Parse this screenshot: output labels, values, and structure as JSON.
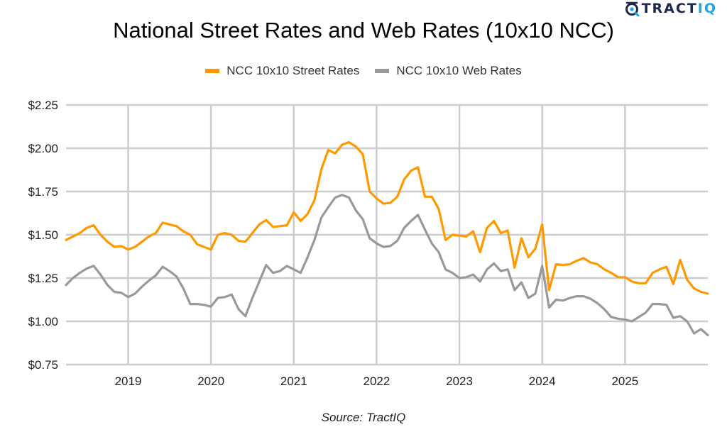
{
  "brand": {
    "logo_text_main": "TRACT",
    "logo_text_accent": "IQ",
    "logo_icon": "tractiq-target-icon",
    "colors": {
      "navy": "#1b2a4a",
      "blue": "#1fa6e0"
    }
  },
  "source_note": "Source: TractIQ",
  "chart_data": {
    "type": "line",
    "title": "National Street Rates and Web Rates (10x10 NCC)",
    "xlabel": "",
    "ylabel": "",
    "x_start": "2018-04",
    "x_end": "2026-01",
    "x_interval": "monthly",
    "x_ticks": [
      "2019",
      "2020",
      "2021",
      "2022",
      "2023",
      "2024",
      "2025"
    ],
    "y_ticks": [
      "$0.75",
      "$1.00",
      "$1.25",
      "$1.50",
      "$1.75",
      "$2.00",
      "$2.25"
    ],
    "ylim": [
      0.75,
      2.25
    ],
    "y_tick_values": [
      0.75,
      1.0,
      1.25,
      1.5,
      1.75,
      2.0,
      2.25
    ],
    "grid": true,
    "legend_position": "top-center",
    "series": [
      {
        "name": "NCC 10x10 Street Rates",
        "color": "#ff9900",
        "values": [
          1.47,
          1.49,
          1.51,
          1.54,
          1.555,
          1.5,
          1.46,
          1.43,
          1.435,
          1.415,
          1.43,
          1.46,
          1.49,
          1.51,
          1.57,
          1.56,
          1.55,
          1.52,
          1.5,
          1.445,
          1.43,
          1.415,
          1.5,
          1.51,
          1.5,
          1.465,
          1.46,
          1.51,
          1.56,
          1.585,
          1.545,
          1.55,
          1.555,
          1.63,
          1.58,
          1.62,
          1.7,
          1.88,
          1.99,
          1.97,
          2.02,
          2.035,
          2.01,
          1.965,
          1.75,
          1.71,
          1.68,
          1.685,
          1.72,
          1.82,
          1.87,
          1.89,
          1.72,
          1.72,
          1.65,
          1.47,
          1.5,
          1.495,
          1.49,
          1.52,
          1.4,
          1.54,
          1.58,
          1.51,
          1.525,
          1.31,
          1.48,
          1.37,
          1.42,
          1.56,
          1.18,
          1.33,
          1.325,
          1.33,
          1.35,
          1.365,
          1.34,
          1.33,
          1.3,
          1.28,
          1.255,
          1.255,
          1.23,
          1.22,
          1.22,
          1.28,
          1.3,
          1.315,
          1.215,
          1.355,
          1.24,
          1.19,
          1.17,
          1.16
        ]
      },
      {
        "name": "NCC 10x10 Web Rates",
        "color": "#999999",
        "values": [
          1.21,
          1.25,
          1.28,
          1.305,
          1.32,
          1.27,
          1.21,
          1.17,
          1.165,
          1.14,
          1.16,
          1.2,
          1.235,
          1.265,
          1.315,
          1.29,
          1.26,
          1.19,
          1.1,
          1.1,
          1.095,
          1.085,
          1.135,
          1.14,
          1.155,
          1.07,
          1.03,
          1.135,
          1.23,
          1.325,
          1.28,
          1.29,
          1.32,
          1.3,
          1.28,
          1.37,
          1.47,
          1.6,
          1.66,
          1.715,
          1.73,
          1.715,
          1.64,
          1.59,
          1.48,
          1.45,
          1.43,
          1.435,
          1.465,
          1.54,
          1.58,
          1.615,
          1.53,
          1.45,
          1.4,
          1.3,
          1.28,
          1.25,
          1.255,
          1.27,
          1.23,
          1.3,
          1.335,
          1.29,
          1.3,
          1.18,
          1.225,
          1.135,
          1.16,
          1.32,
          1.08,
          1.125,
          1.12,
          1.135,
          1.145,
          1.145,
          1.13,
          1.105,
          1.07,
          1.025,
          1.015,
          1.01,
          1.0,
          1.025,
          1.05,
          1.1,
          1.1,
          1.095,
          1.02,
          1.03,
          1.0,
          0.93,
          0.955,
          0.92
        ]
      }
    ]
  }
}
